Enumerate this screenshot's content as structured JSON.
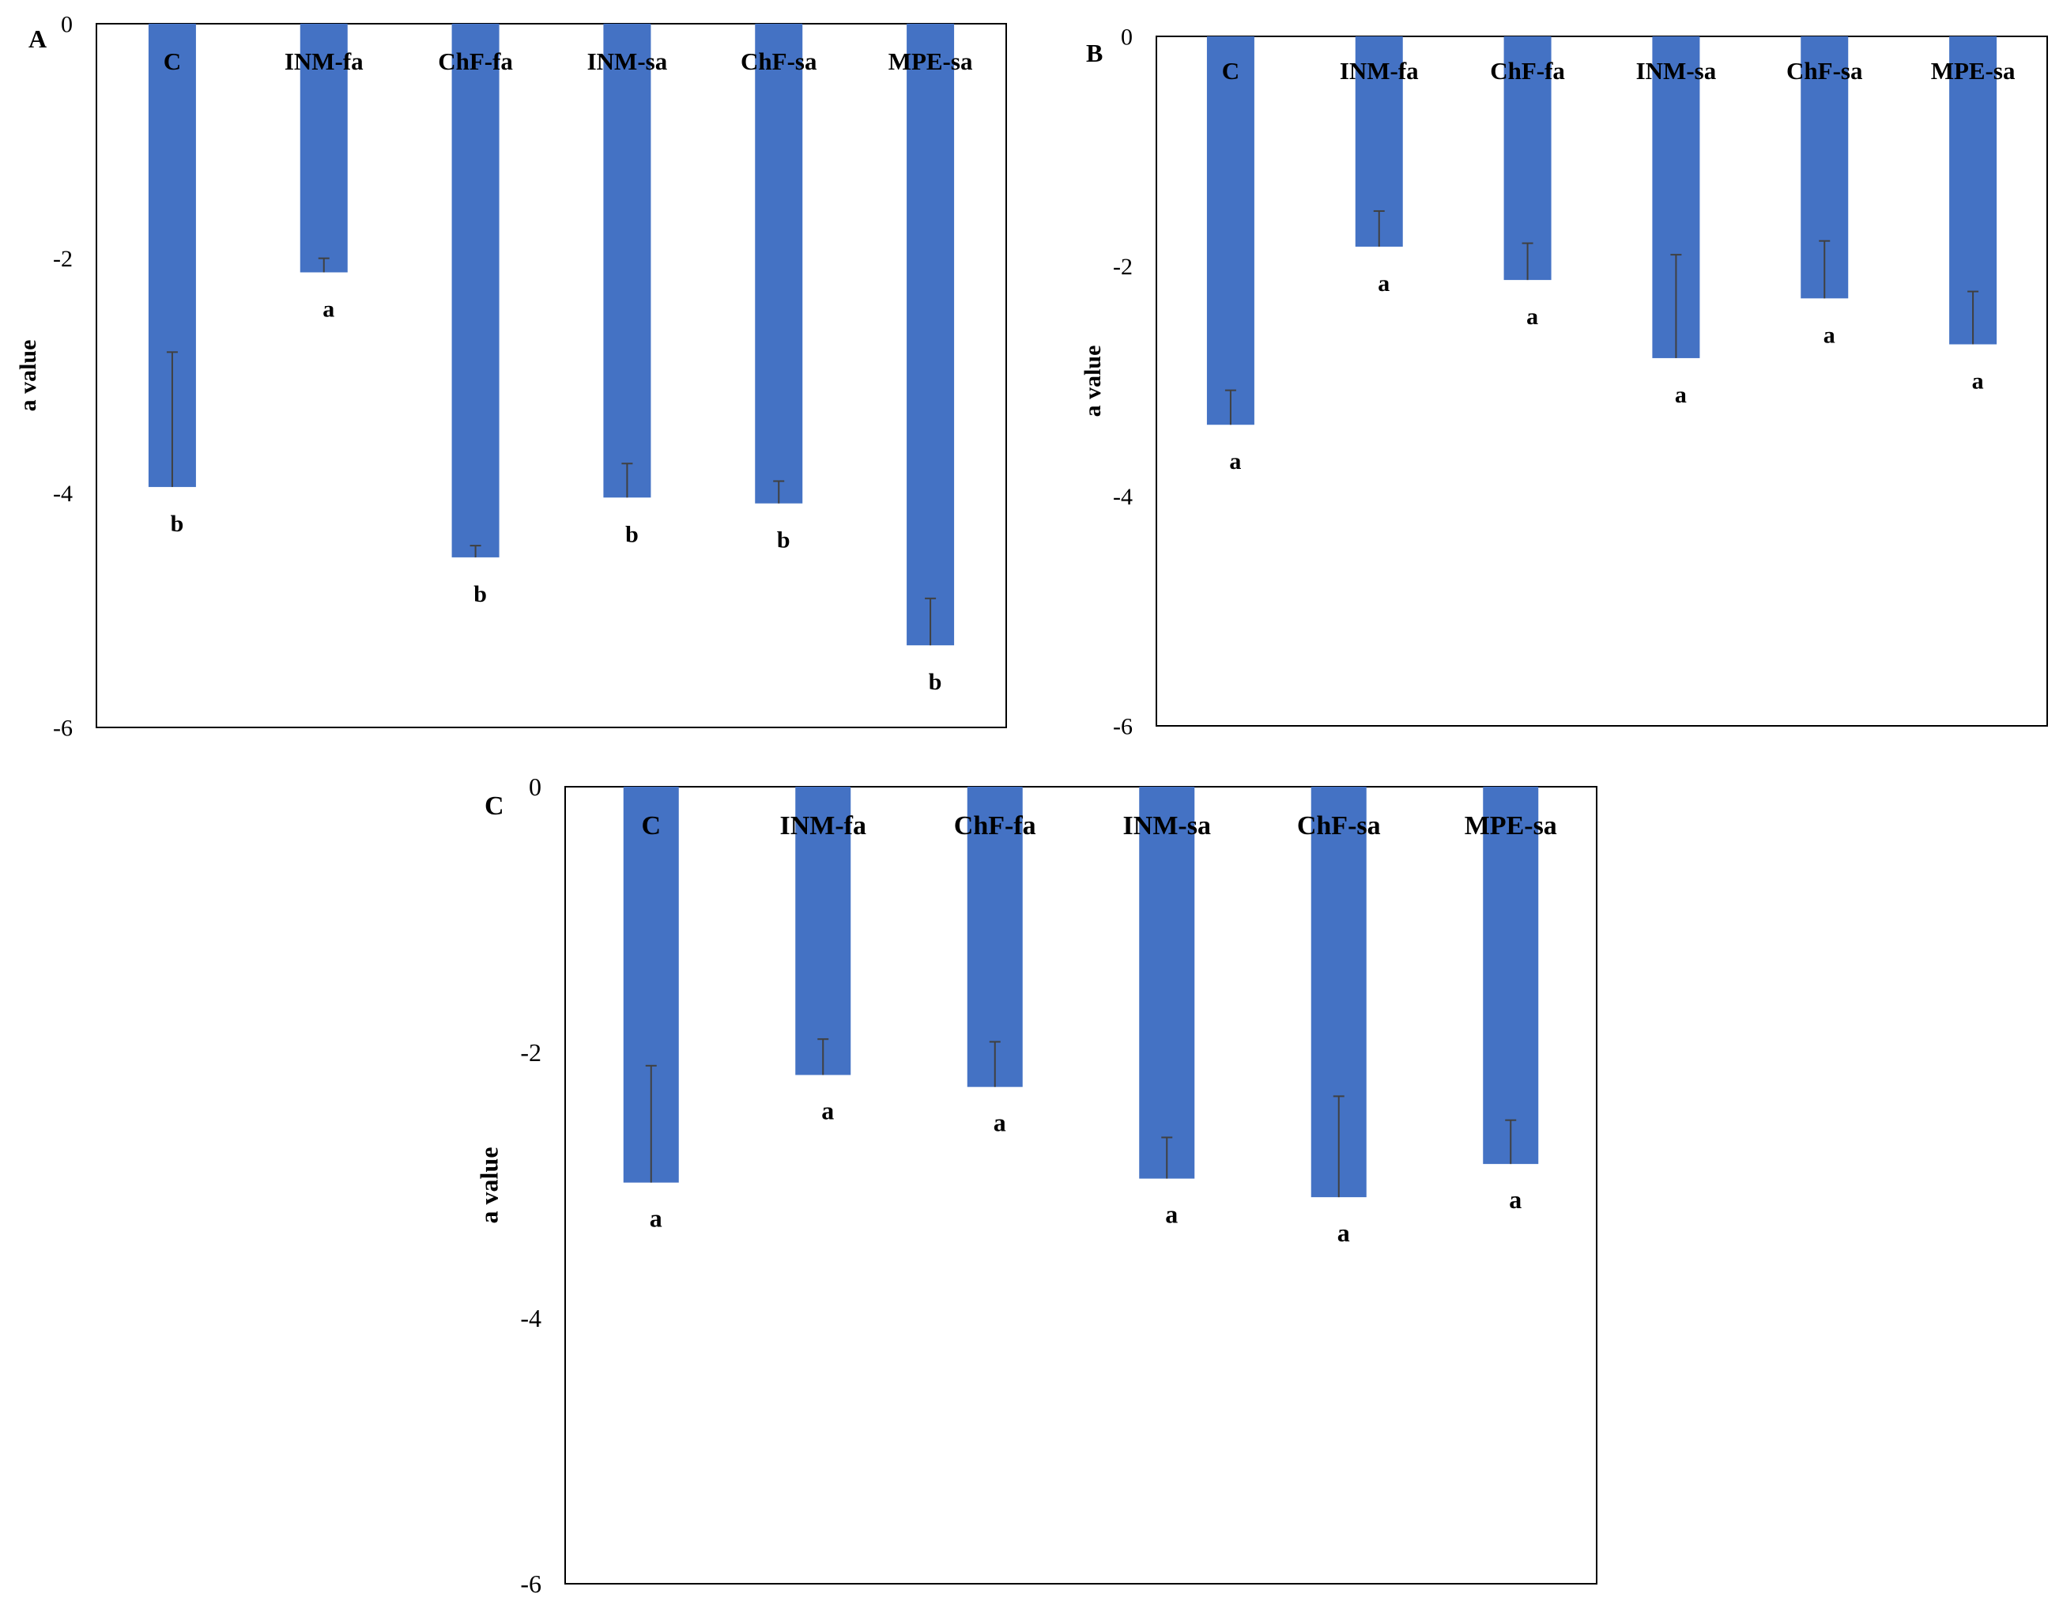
{
  "figure": {
    "panel_letters": [
      "A",
      "B",
      "C"
    ]
  },
  "colors": {
    "bar": "#4472C4",
    "error_bar": "#404040",
    "frame": "#000000",
    "tick_text": "#000000"
  },
  "chart_data": [
    {
      "type": "bar",
      "panel": "A",
      "categories": [
        "C",
        "INM-fa",
        "ChF-fa",
        "INM-sa",
        "ChF-sa",
        "MPE-sa"
      ],
      "values": [
        -3.95,
        -2.12,
        -4.55,
        -4.04,
        -4.09,
        -5.3
      ],
      "error_upper": [
        -2.8,
        -2.0,
        -4.45,
        -3.75,
        -3.9,
        -4.9
      ],
      "letters": [
        "b",
        "a",
        "b",
        "b",
        "b",
        "b"
      ],
      "ylabel": "a value",
      "xlabel": "",
      "ylim": [
        -6,
        0
      ],
      "yticks": [
        0,
        -2,
        -4,
        -6
      ],
      "grid": false,
      "legend": "none"
    },
    {
      "type": "bar",
      "panel": "B",
      "categories": [
        "C",
        "INM-fa",
        "ChF-fa",
        "INM-sa",
        "ChF-sa",
        "MPE-sa"
      ],
      "values": [
        -3.38,
        -1.83,
        -2.12,
        -2.8,
        -2.28,
        -2.68
      ],
      "error_upper": [
        -3.08,
        -1.52,
        -1.8,
        -1.9,
        -1.78,
        -2.22
      ],
      "letters": [
        "a",
        "a",
        "a",
        "a",
        "a",
        "a"
      ],
      "ylabel": "a value",
      "xlabel": "",
      "ylim": [
        -6,
        0
      ],
      "yticks": [
        0,
        -2,
        -4,
        -6
      ],
      "grid": false,
      "legend": "none"
    },
    {
      "type": "bar",
      "panel": "C",
      "categories": [
        "C",
        "INM-fa",
        "ChF-fa",
        "INM-sa",
        "ChF-sa",
        "MPE-sa"
      ],
      "values": [
        -2.98,
        -2.17,
        -2.26,
        -2.95,
        -3.09,
        -2.84
      ],
      "error_upper": [
        -2.1,
        -1.9,
        -1.92,
        -2.64,
        -2.33,
        -2.51
      ],
      "letters": [
        "a",
        "a",
        "a",
        "a",
        "a",
        "a"
      ],
      "ylabel": "a value",
      "xlabel": "",
      "ylim": [
        -6,
        0
      ],
      "yticks": [
        0,
        -2,
        -4,
        -6
      ],
      "grid": false,
      "legend": "none"
    }
  ]
}
